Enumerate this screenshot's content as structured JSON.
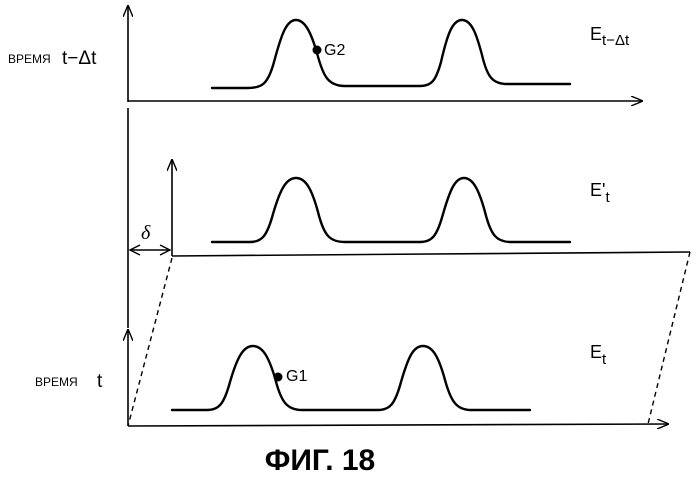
{
  "panels": {
    "top": {
      "time_word": "ВРЕМЯ",
      "time_var": "t−Δt",
      "signal_main": "E",
      "signal_sub": "t−Δt",
      "point_label": "G2"
    },
    "middle": {
      "signal_main": "E'",
      "signal_sub": "t",
      "offset_label": "δ"
    },
    "bottom": {
      "time_word": "ВРЕМЯ",
      "time_var": "t",
      "signal_main": "E",
      "signal_sub": "t",
      "point_label": "G1"
    }
  },
  "caption": "ФИГ. 18",
  "colors": {
    "ink": "#000000",
    "background": "#ffffff"
  }
}
